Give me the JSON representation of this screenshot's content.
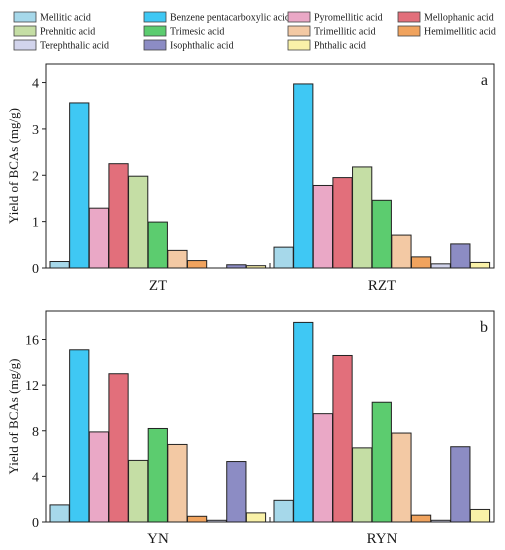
{
  "legend": {
    "placement": "top",
    "items": [
      {
        "label": "Mellitic acid",
        "color": "#a6d8ea"
      },
      {
        "label": "Benzene pentacarboxylic acid",
        "color": "#3fc8f4"
      },
      {
        "label": "Pyromellitic acid",
        "color": "#eaa8c6"
      },
      {
        "label": "Mellophanic acid",
        "color": "#e26f7b"
      },
      {
        "label": "Prehnitic acid",
        "color": "#c5dea5"
      },
      {
        "label": "Trimesic acid",
        "color": "#5ccc6f"
      },
      {
        "label": "Trimellitic acid",
        "color": "#f3c9a4"
      },
      {
        "label": "Hemimellitic acid",
        "color": "#f0a35e"
      },
      {
        "label": "Terephthalic acid",
        "color": "#d2d4ec"
      },
      {
        "label": "Isophthalic acid",
        "color": "#8c8cc4"
      },
      {
        "label": "Phthalic acid",
        "color": "#f9f1a8"
      }
    ]
  },
  "chart_data": [
    {
      "type": "bar",
      "panel_label": "a",
      "ylabel": "Yield of BCAs (mg/g)",
      "ylim": [
        0,
        4.4
      ],
      "yticks": [
        0,
        1,
        2,
        3,
        4
      ],
      "grid": false,
      "categories": [
        "ZT",
        "RZT"
      ],
      "series": [
        {
          "name": "Mellitic acid",
          "values": [
            0.14,
            0.45
          ]
        },
        {
          "name": "Benzene pentacarboxylic acid",
          "values": [
            3.56,
            3.97
          ]
        },
        {
          "name": "Pyromellitic acid",
          "values": [
            1.29,
            1.78
          ]
        },
        {
          "name": "Mellophanic acid",
          "values": [
            2.25,
            1.95
          ]
        },
        {
          "name": "Prehnitic acid",
          "values": [
            1.98,
            2.18
          ]
        },
        {
          "name": "Trimesic acid",
          "values": [
            0.99,
            1.46
          ]
        },
        {
          "name": "Trimellitic acid",
          "values": [
            0.38,
            0.71
          ]
        },
        {
          "name": "Hemimellitic acid",
          "values": [
            0.16,
            0.24
          ]
        },
        {
          "name": "Terephthalic acid",
          "values": [
            0.0,
            0.09
          ]
        },
        {
          "name": "Isophthalic acid",
          "values": [
            0.07,
            0.52
          ]
        },
        {
          "name": "Phthalic acid",
          "values": [
            0.05,
            0.12
          ]
        }
      ]
    },
    {
      "type": "bar",
      "panel_label": "b",
      "ylabel": "Yield of BCAs (mg/g)",
      "ylim": [
        0,
        18.5
      ],
      "yticks": [
        0,
        4,
        8,
        12,
        16
      ],
      "grid": false,
      "categories": [
        "YN",
        "RYN"
      ],
      "series": [
        {
          "name": "Mellitic acid",
          "values": [
            1.5,
            1.9
          ]
        },
        {
          "name": "Benzene pentacarboxylic acid",
          "values": [
            15.1,
            17.5
          ]
        },
        {
          "name": "Pyromellitic acid",
          "values": [
            7.9,
            9.5
          ]
        },
        {
          "name": "Mellophanic acid",
          "values": [
            13.0,
            14.6
          ]
        },
        {
          "name": "Prehnitic acid",
          "values": [
            5.4,
            6.5
          ]
        },
        {
          "name": "Trimesic acid",
          "values": [
            8.2,
            10.5
          ]
        },
        {
          "name": "Trimellitic acid",
          "values": [
            6.8,
            7.8
          ]
        },
        {
          "name": "Hemimellitic acid",
          "values": [
            0.5,
            0.6
          ]
        },
        {
          "name": "Terephthalic acid",
          "values": [
            0.15,
            0.15
          ]
        },
        {
          "name": "Isophthalic acid",
          "values": [
            5.3,
            6.6
          ]
        },
        {
          "name": "Phthalic acid",
          "values": [
            0.8,
            1.1
          ]
        }
      ]
    }
  ]
}
